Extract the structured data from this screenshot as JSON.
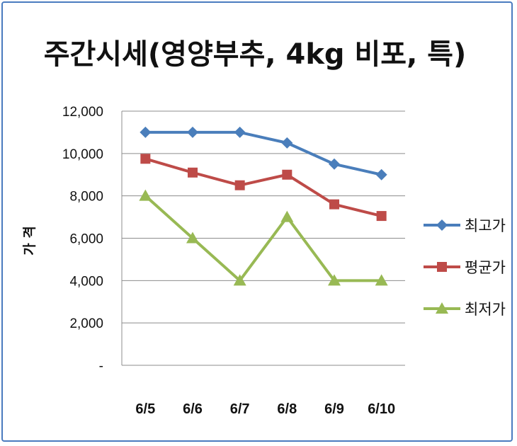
{
  "chart_data": {
    "type": "line",
    "title": "주간시세(영양부추, 4kg 비포, 특)",
    "xlabel": "",
    "ylabel": "가 격",
    "categories": [
      "6/5",
      "6/6",
      "6/7",
      "6/8",
      "6/9",
      "6/10"
    ],
    "ylim": [
      0,
      12000
    ],
    "yticks": [
      0,
      2000,
      4000,
      6000,
      8000,
      10000,
      12000
    ],
    "ytick_labels": [
      "-",
      "2,000",
      "4,000",
      "6,000",
      "8,000",
      "10,000",
      "12,000"
    ],
    "grid": true,
    "legend_position": "right",
    "series": [
      {
        "name": "최고가",
        "values": [
          11000,
          11000,
          11000,
          10500,
          9500,
          9000
        ],
        "color": "#4a7ebb",
        "marker": "diamond"
      },
      {
        "name": "평균가",
        "values": [
          9750,
          9100,
          8500,
          9000,
          7600,
          7050
        ],
        "color": "#be4b48",
        "marker": "square"
      },
      {
        "name": "최저가",
        "values": [
          8000,
          6000,
          4000,
          7000,
          4000,
          4000
        ],
        "color": "#98b954",
        "marker": "triangle"
      }
    ]
  }
}
